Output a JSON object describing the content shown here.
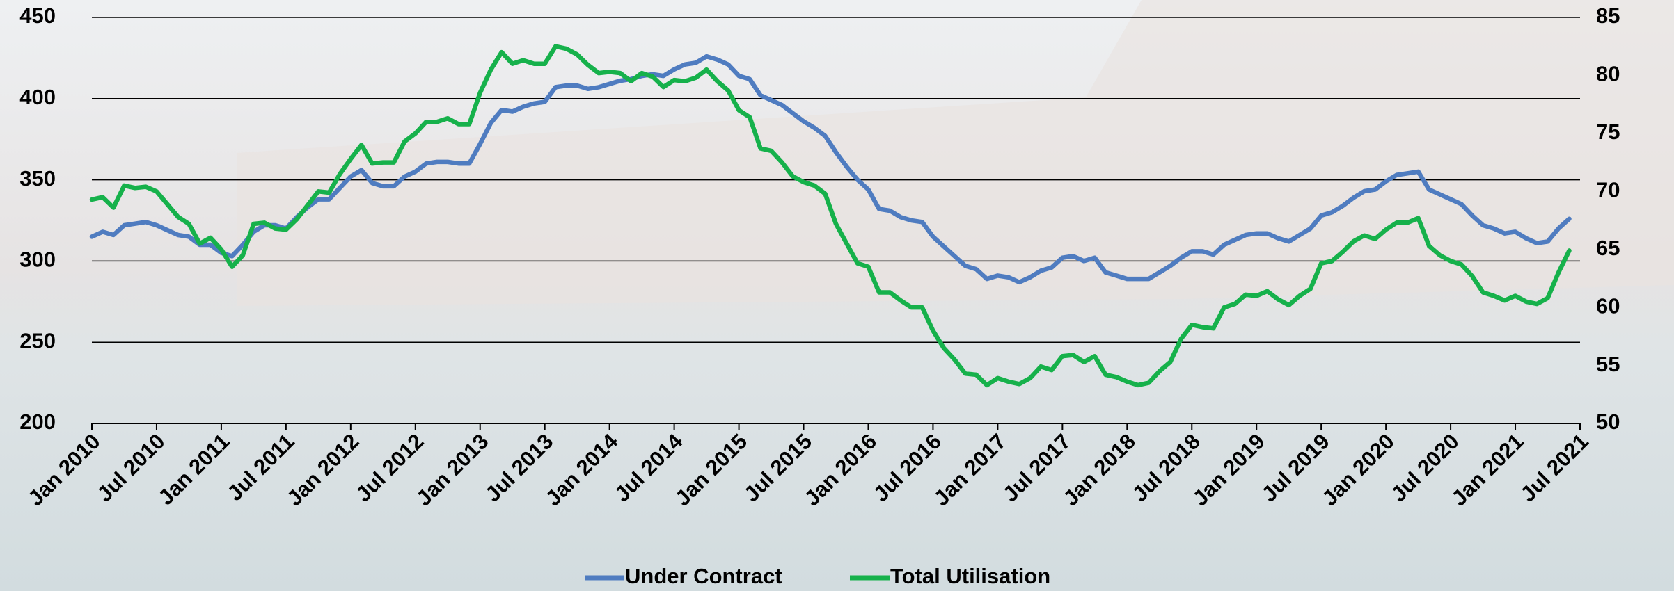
{
  "chart_data": {
    "type": "line",
    "categories": [
      "Jan 2010",
      null,
      null,
      null,
      null,
      null,
      "Jul 2010",
      null,
      null,
      null,
      null,
      null,
      "Jan 2011",
      null,
      null,
      null,
      null,
      null,
      "Jul 2011",
      null,
      null,
      null,
      null,
      null,
      "Jan 2012",
      null,
      null,
      null,
      null,
      null,
      "Jul 2012",
      null,
      null,
      null,
      null,
      null,
      "Jan 2013",
      null,
      null,
      null,
      null,
      null,
      "Jul 2013",
      null,
      null,
      null,
      null,
      null,
      "Jan 2014",
      null,
      null,
      null,
      null,
      null,
      "Jul 2014",
      null,
      null,
      null,
      null,
      null,
      "Jan 2015",
      null,
      null,
      null,
      null,
      null,
      "Jul 2015",
      null,
      null,
      null,
      null,
      null,
      "Jan 2016",
      null,
      null,
      null,
      null,
      null,
      "Jul 2016",
      null,
      null,
      null,
      null,
      null,
      "Jan 2017",
      null,
      null,
      null,
      null,
      null,
      "Jul 2017",
      null,
      null,
      null,
      null,
      null,
      "Jan 2018",
      null,
      null,
      null,
      null,
      null,
      "Jul 2018",
      null,
      null,
      null,
      null,
      null,
      "Jan 2019",
      null,
      null,
      null,
      null,
      null,
      "Jul 2019",
      null,
      null,
      null,
      null,
      null,
      "Jan 2020",
      null,
      null,
      null,
      null,
      null,
      "Jul 2020",
      null,
      null,
      null,
      null,
      null,
      "Jan 2021",
      null,
      null,
      null,
      null,
      null,
      "Jul 2021"
    ],
    "series": [
      {
        "name": "Under Contract",
        "color": "#4f7cc0",
        "values": [
          315,
          318,
          316,
          322,
          323,
          324,
          322,
          319,
          316,
          315,
          310,
          310,
          305,
          303,
          310,
          318,
          322,
          322,
          320,
          327,
          333,
          338,
          338,
          345,
          352,
          356,
          348,
          346,
          346,
          352,
          355,
          360,
          361,
          361,
          360,
          360,
          372,
          385,
          393,
          392,
          395,
          397,
          398,
          407,
          408,
          408,
          406,
          407,
          409,
          411,
          412,
          414,
          415,
          414,
          418,
          421,
          422,
          426,
          424,
          421,
          414,
          412,
          402,
          399,
          396,
          391,
          386,
          382,
          377,
          367,
          358,
          350,
          344,
          332,
          331,
          327,
          325,
          324,
          315,
          309,
          303,
          297,
          295,
          289,
          291,
          290,
          287,
          290,
          294,
          296,
          302,
          303,
          300,
          302,
          293,
          291,
          289,
          289,
          289,
          293,
          297,
          302,
          306,
          306,
          304,
          310,
          313,
          316,
          317,
          317,
          314,
          312,
          316,
          320,
          328,
          330,
          334,
          339,
          343,
          344,
          349,
          353,
          354,
          355,
          344,
          341,
          338,
          335,
          328,
          322,
          320,
          317,
          318,
          314,
          311,
          312,
          320,
          326,
          null
        ]
      },
      {
        "name": "Total Utilisation",
        "color": "#16b14b",
        "axis": "y2",
        "values": [
          69.3,
          69.5,
          68.6,
          70.5,
          70.3,
          70.4,
          70.0,
          68.9,
          67.8,
          67.2,
          65.5,
          66.0,
          65.0,
          63.5,
          64.5,
          67.2,
          67.3,
          66.8,
          66.7,
          67.6,
          68.8,
          70.0,
          69.9,
          71.5,
          72.8,
          74.0,
          72.4,
          72.5,
          72.5,
          74.3,
          75.0,
          76.0,
          76.0,
          76.3,
          75.8,
          75.8,
          78.5,
          80.5,
          82.0,
          81.0,
          81.3,
          81.0,
          81.0,
          82.5,
          82.3,
          81.8,
          80.9,
          80.2,
          80.3,
          80.2,
          79.5,
          80.2,
          79.9,
          79.0,
          79.6,
          79.5,
          79.8,
          80.5,
          79.5,
          78.7,
          77.0,
          76.4,
          73.7,
          73.5,
          72.5,
          71.3,
          70.8,
          70.5,
          69.8,
          67.2,
          65.5,
          63.8,
          63.5,
          61.3,
          61.3,
          60.6,
          60.0,
          60.0,
          58.0,
          56.5,
          55.5,
          54.3,
          54.2,
          53.3,
          53.9,
          53.6,
          53.4,
          53.9,
          54.9,
          54.6,
          55.8,
          55.9,
          55.3,
          55.8,
          54.2,
          54.0,
          53.6,
          53.3,
          53.5,
          54.5,
          55.3,
          57.3,
          58.5,
          58.3,
          58.2,
          60.0,
          60.3,
          61.1,
          61.0,
          61.4,
          60.7,
          60.2,
          61.0,
          61.6,
          63.8,
          64.0,
          64.8,
          65.7,
          66.2,
          65.9,
          66.7,
          67.3,
          67.3,
          67.7,
          65.3,
          64.5,
          64.0,
          63.7,
          62.7,
          61.3,
          61.0,
          60.6,
          61.0,
          60.5,
          60.3,
          60.8,
          63.0,
          64.9,
          null
        ]
      }
    ],
    "ylim": [
      200,
      450
    ],
    "yticks": [
      200,
      250,
      300,
      350,
      400,
      450
    ],
    "y2lim": [
      50,
      85
    ],
    "y2ticks": [
      50,
      55,
      60,
      65,
      70,
      75,
      80,
      85
    ],
    "grid": true
  }
}
